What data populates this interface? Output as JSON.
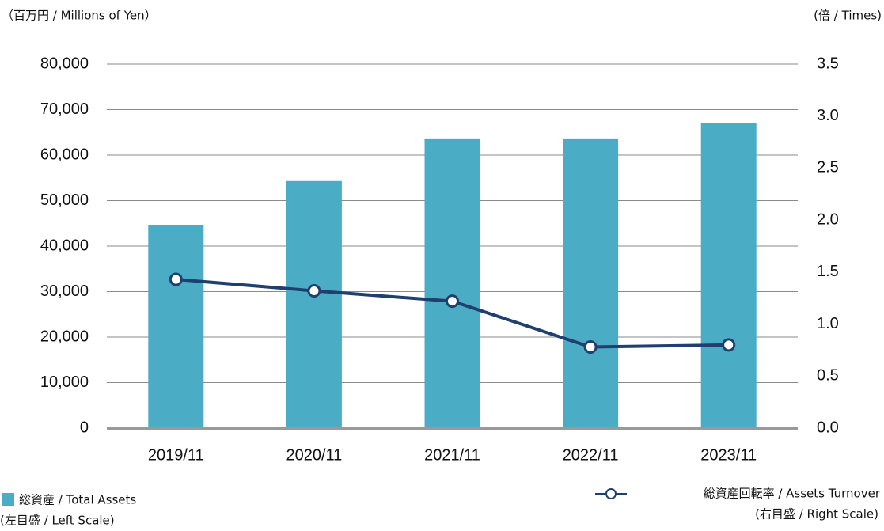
{
  "chart_data": {
    "type": "bar",
    "left_axis_label": "（百万円 / Millions of Yen）",
    "right_axis_label": "(倍 / Times)",
    "categories": [
      "2019/11",
      "2020/11",
      "2021/11",
      "2022/11",
      "2023/11"
    ],
    "series": [
      {
        "name": "総資産 / Total Assets",
        "note": "(左目盛 / Left Scale)",
        "type": "bar",
        "color": "#4bacc6",
        "values": [
          44700,
          54300,
          63500,
          63500,
          67100
        ]
      },
      {
        "name": "総資産回転率 / Assets Turnover",
        "note": "(右目盛 / Right Scale)",
        "type": "line",
        "axis": "y2",
        "color": "#1f3f6e",
        "values": [
          1.43,
          1.32,
          1.22,
          0.78,
          0.8
        ]
      }
    ],
    "ylim": [
      0,
      80000
    ],
    "yticks": [
      0,
      {
        "value": 10000,
        "label": "10,000"
      },
      {
        "value": 20000,
        "label": "20,000"
      },
      {
        "value": 30000,
        "label": "30,000"
      },
      {
        "value": 40000,
        "label": "40,000"
      },
      {
        "value": 50000,
        "label": "50,000"
      },
      {
        "value": 60000,
        "label": "60,000"
      },
      {
        "value": 70000,
        "label": "70,000"
      },
      {
        "value": 80000,
        "label": "80,000"
      }
    ],
    "y2lim": [
      0,
      3.5
    ],
    "y2ticks": [
      {
        "value": 0,
        "label": "0.0"
      },
      0.5,
      {
        "value": 1,
        "label": "1.0"
      },
      1.5,
      {
        "value": 2,
        "label": "2.0"
      },
      2.5,
      {
        "value": 3,
        "label": "3.0"
      },
      3.5
    ],
    "grid": true
  }
}
